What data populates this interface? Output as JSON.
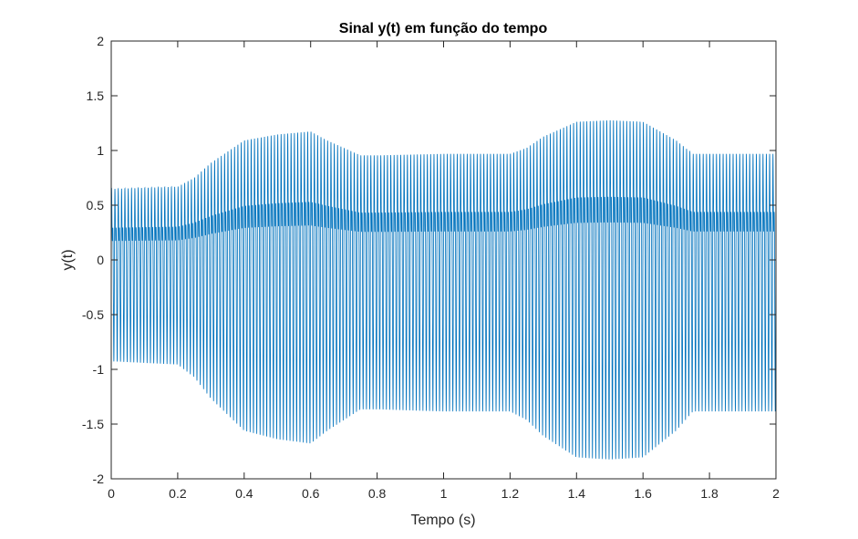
{
  "chart_data": {
    "type": "line",
    "title": "Sinal y(t) em função do tempo",
    "xlabel": "Tempo (s)",
    "ylabel": "y(t)",
    "xlim": [
      0,
      2
    ],
    "ylim": [
      -2,
      2
    ],
    "xticks": [
      0,
      0.2,
      0.4,
      0.6,
      0.8,
      1,
      1.2,
      1.4,
      1.6,
      1.8,
      2
    ],
    "xtick_labels": [
      "0",
      "0.2",
      "0.4",
      "0.6",
      "0.8",
      "1",
      "1.2",
      "1.4",
      "1.6",
      "1.8",
      "2"
    ],
    "yticks": [
      -2,
      -1.5,
      -1,
      -0.5,
      0,
      0.5,
      1,
      1.5,
      2
    ],
    "ytick_labels": [
      "-2",
      "-1.5",
      "-1",
      "-0.5",
      "0",
      "0.5",
      "1",
      "1.5",
      "2"
    ],
    "grid": false,
    "series": [
      {
        "color": "#0072BD",
        "description_points_t": [
          0,
          0.2,
          0.25,
          0.3,
          0.4,
          0.5,
          0.6,
          0.65,
          0.75,
          0.8,
          1.0,
          1.2,
          1.25,
          1.3,
          1.4,
          1.5,
          1.6,
          1.7,
          1.75,
          1.8,
          2.0
        ],
        "envelope_peak": [
          0.95,
          0.98,
          1.1,
          1.3,
          1.6,
          1.68,
          1.72,
          1.6,
          1.4,
          1.4,
          1.42,
          1.42,
          1.5,
          1.65,
          1.85,
          1.87,
          1.85,
          1.6,
          1.42,
          1.42,
          1.42
        ]
      }
    ]
  }
}
